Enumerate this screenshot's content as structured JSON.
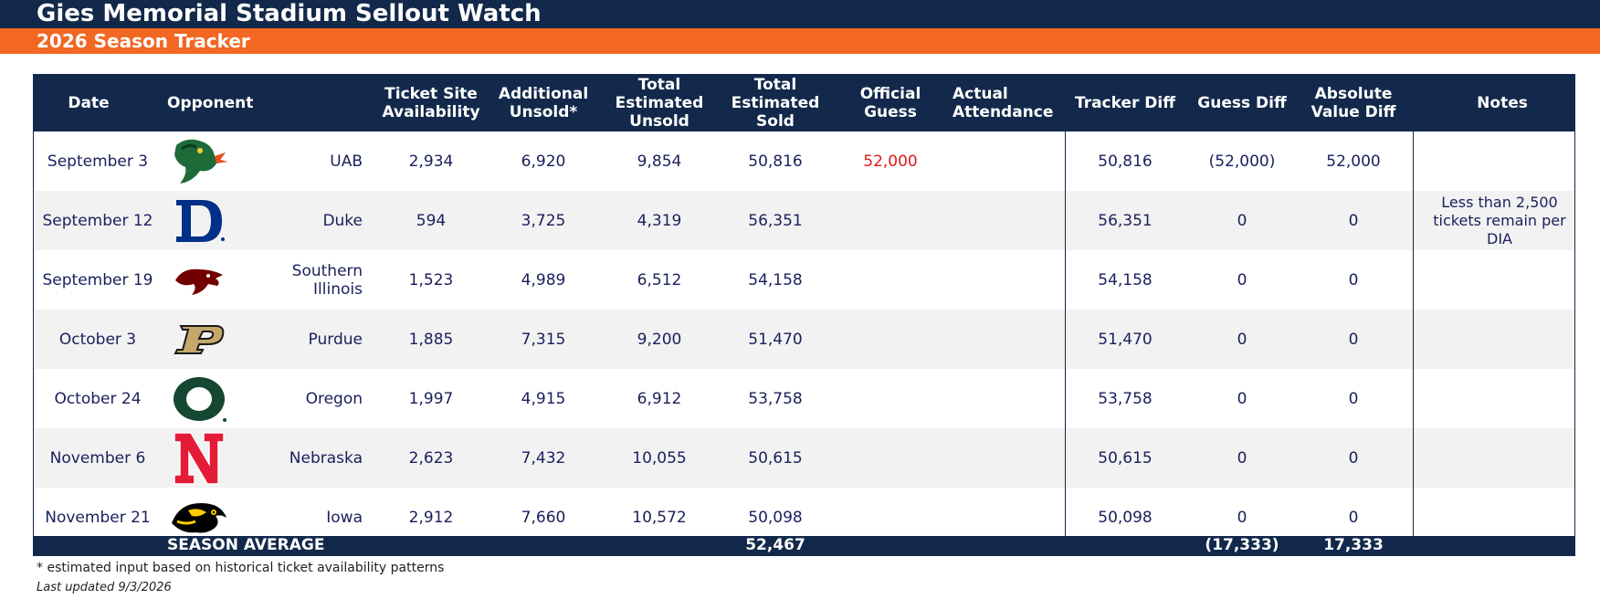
{
  "header": {
    "title": "Gies Memorial Stadium Sellout Watch",
    "subtitle": "2026 Season Tracker"
  },
  "colors": {
    "navy": "#13294b",
    "orange": "#f26722",
    "red_text": "#e0191b"
  },
  "table": {
    "columns": {
      "date": "Date",
      "opponent": "Opponent",
      "ticket_site": "Ticket Site Availability",
      "additional_unsold": "Additional Unsold*",
      "total_unsold": "Total Estimated Unsold",
      "total_sold": "Total Estimated Sold",
      "official_guess": "Official Guess",
      "actual_attendance": "Actual Attendance",
      "tracker_diff": "Tracker Diff",
      "guess_diff": "Guess Diff",
      "abs_diff": "Absolute Value Diff",
      "notes": "Notes"
    },
    "rows": [
      {
        "date": "September 3",
        "logo_icon": "uab-dragon-logo-icon",
        "opponent": "UAB",
        "ticket_site": "2,934",
        "additional_unsold": "6,920",
        "total_unsold": "9,854",
        "total_sold": "50,816",
        "official_guess": "52,000",
        "actual_attendance": "",
        "tracker_diff": "50,816",
        "guess_diff": "(52,000)",
        "abs_diff": "52,000",
        "notes": ""
      },
      {
        "date": "September 12",
        "logo_icon": "duke-logo-icon",
        "opponent": "Duke",
        "ticket_site": "594",
        "additional_unsold": "3,725",
        "total_unsold": "4,319",
        "total_sold": "56,351",
        "official_guess": "",
        "actual_attendance": "",
        "tracker_diff": "56,351",
        "guess_diff": "0",
        "abs_diff": "0",
        "notes": "Less than 2,500 tickets remain per DIA"
      },
      {
        "date": "September 19",
        "logo_icon": "saluki-logo-icon",
        "opponent": "Southern Illinois",
        "ticket_site": "1,523",
        "additional_unsold": "4,989",
        "total_unsold": "6,512",
        "total_sold": "54,158",
        "official_guess": "",
        "actual_attendance": "",
        "tracker_diff": "54,158",
        "guess_diff": "0",
        "abs_diff": "0",
        "notes": ""
      },
      {
        "date": "October 3",
        "logo_icon": "purdue-logo-icon",
        "opponent": "Purdue",
        "ticket_site": "1,885",
        "additional_unsold": "7,315",
        "total_unsold": "9,200",
        "total_sold": "51,470",
        "official_guess": "",
        "actual_attendance": "",
        "tracker_diff": "51,470",
        "guess_diff": "0",
        "abs_diff": "0",
        "notes": ""
      },
      {
        "date": "October 24",
        "logo_icon": "oregon-logo-icon",
        "opponent": "Oregon",
        "ticket_site": "1,997",
        "additional_unsold": "4,915",
        "total_unsold": "6,912",
        "total_sold": "53,758",
        "official_guess": "",
        "actual_attendance": "",
        "tracker_diff": "53,758",
        "guess_diff": "0",
        "abs_diff": "0",
        "notes": ""
      },
      {
        "date": "November 6",
        "logo_icon": "nebraska-logo-icon",
        "opponent": "Nebraska",
        "ticket_site": "2,623",
        "additional_unsold": "7,432",
        "total_unsold": "10,055",
        "total_sold": "50,615",
        "official_guess": "",
        "actual_attendance": "",
        "tracker_diff": "50,615",
        "guess_diff": "0",
        "abs_diff": "0",
        "notes": ""
      },
      {
        "date": "November 21",
        "logo_icon": "iowa-logo-icon",
        "opponent": "Iowa",
        "ticket_site": "2,912",
        "additional_unsold": "7,660",
        "total_unsold": "10,572",
        "total_sold": "50,098",
        "official_guess": "",
        "actual_attendance": "",
        "tracker_diff": "50,098",
        "guess_diff": "0",
        "abs_diff": "0",
        "notes": ""
      }
    ],
    "footer": {
      "label": "SEASON AVERAGE",
      "total_sold": "52,467",
      "guess_diff": "(17,333)",
      "abs_diff": "17,333"
    }
  },
  "footnote": "* estimated input based on historical ticket availability patterns",
  "last_updated": "Last updated 9/3/2026"
}
